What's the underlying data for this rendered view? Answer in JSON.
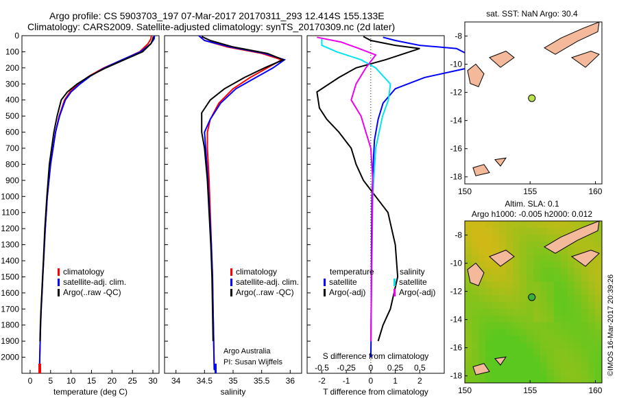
{
  "header": {
    "line1": "Argo profile: CS 5903703_197 07-Mar-2017 20170311_293 12.414S 155.133E",
    "line2": "Climatology: CARS2009. Satellite-adjusted climatology: synTS_20170309.nc (2d later)"
  },
  "colors": {
    "climatology": "#ff0000",
    "satellite": "#0000ff",
    "argo": "#000000",
    "cyan": "#00e5ee",
    "magenta": "#ee00ee",
    "land": "#f4b89a"
  },
  "credits": {
    "argo_australia": "Argo Australia",
    "pi": "PI: Susan Wijffels",
    "imos": "©IMOS 16-Mar-2017 20:39:26"
  },
  "chart_data": [
    {
      "type": "line",
      "name": "temperature-panel",
      "xlabel": "temperature (deg C)",
      "ylabel": "",
      "xlim": [
        -2,
        31.5
      ],
      "ylim": [
        2100,
        0
      ],
      "xticks": [
        0,
        5,
        10,
        15,
        20,
        25,
        30
      ],
      "yticks": [
        0,
        100,
        200,
        300,
        400,
        500,
        600,
        700,
        800,
        900,
        1000,
        1100,
        1200,
        1300,
        1400,
        1500,
        1600,
        1700,
        1800,
        1900,
        2000
      ],
      "legend": [
        "climatology",
        "satellite-adj. clim.",
        "Argo(..raw -QC)"
      ],
      "legend_position": "bottom-center",
      "series": [
        {
          "name": "climatology",
          "color": "#ff0000",
          "x": [
            29.6,
            29.5,
            28.8,
            26.8,
            22.5,
            18.0,
            14.5,
            11.8,
            9.7,
            8.4,
            7.1,
            6.2,
            5.0,
            4.2,
            3.7,
            3.3,
            3.1,
            2.9,
            2.7,
            2.55,
            2.45,
            2.35,
            2.3
          ],
          "y": [
            0,
            20,
            50,
            100,
            150,
            200,
            250,
            300,
            350,
            400,
            500,
            600,
            800,
            1000,
            1200,
            1400,
            1500,
            1600,
            1700,
            1800,
            1900,
            2000,
            2080
          ]
        },
        {
          "name": "satellite-adj. clim.",
          "color": "#0000ff",
          "x": [
            30.4,
            30.3,
            29.5,
            27.0,
            22.5,
            18.2,
            14.8,
            12.2,
            10.0,
            8.6,
            7.2,
            6.2,
            5.0,
            4.2,
            3.7,
            3.3,
            3.1,
            2.9,
            2.7,
            2.55,
            2.45,
            2.35,
            2.3
          ],
          "y": [
            0,
            20,
            50,
            100,
            150,
            200,
            250,
            300,
            350,
            400,
            500,
            600,
            800,
            1000,
            1200,
            1400,
            1500,
            1600,
            1700,
            1800,
            1900,
            2000,
            2080
          ]
        },
        {
          "name": "Argo(..raw -QC)",
          "color": "#000000",
          "x": [
            30.1,
            30.0,
            29.5,
            27.5,
            23.0,
            18.5,
            14.6,
            11.5,
            9.1,
            7.6,
            6.6,
            5.8,
            4.7,
            4.1,
            3.6,
            3.25,
            3.05,
            2.85,
            2.65,
            2.5,
            2.4
          ],
          "y": [
            5,
            20,
            50,
            100,
            150,
            200,
            250,
            300,
            350,
            400,
            500,
            600,
            800,
            1000,
            1200,
            1400,
            1500,
            1600,
            1700,
            1800,
            1900
          ]
        }
      ]
    },
    {
      "type": "line",
      "name": "salinity-panel",
      "xlabel": "salinity",
      "xlim": [
        33.8,
        36.2
      ],
      "ylim": [
        2100,
        0
      ],
      "xticks": [
        34,
        34.5,
        35,
        35.5,
        36
      ],
      "legend": [
        "climatology",
        "satellite-adj. clim.",
        "Argo(..raw -QC)"
      ],
      "legend_position": "bottom-right",
      "series": [
        {
          "name": "climatology",
          "color": "#ff0000",
          "x": [
            34.4,
            34.5,
            34.9,
            35.5,
            35.85,
            35.6,
            35.3,
            35.0,
            34.75,
            34.6,
            34.55,
            34.55,
            34.58,
            34.6,
            34.62,
            34.64,
            34.65,
            34.66,
            34.67
          ],
          "y": [
            0,
            30,
            70,
            110,
            150,
            200,
            260,
            330,
            420,
            520,
            600,
            700,
            900,
            1100,
            1300,
            1500,
            1700,
            1900,
            2080
          ]
        },
        {
          "name": "satellite-adj. clim.",
          "color": "#0000ff",
          "x": [
            34.4,
            34.5,
            34.95,
            35.55,
            35.9,
            35.7,
            35.4,
            35.05,
            34.78,
            34.6,
            34.5,
            34.52,
            34.56,
            34.59,
            34.62,
            34.64,
            34.65,
            34.66,
            34.67
          ],
          "y": [
            0,
            30,
            70,
            110,
            150,
            200,
            260,
            330,
            420,
            520,
            600,
            700,
            900,
            1100,
            1300,
            1500,
            1700,
            1900,
            2080
          ]
        },
        {
          "name": "Argo(..raw -QC)",
          "color": "#000000",
          "x": [
            34.45,
            34.6,
            35.0,
            35.6,
            35.88,
            35.55,
            35.2,
            34.85,
            34.6,
            34.45,
            34.45,
            34.5,
            34.55,
            34.58,
            34.61,
            34.63,
            34.64,
            34.65
          ],
          "y": [
            5,
            30,
            70,
            110,
            150,
            200,
            260,
            330,
            400,
            480,
            600,
            700,
            900,
            1100,
            1300,
            1500,
            1700,
            1900
          ]
        }
      ]
    },
    {
      "type": "line",
      "name": "difference-panel",
      "xlabel": "T difference from climatology",
      "top_label": "S difference from climatology",
      "xlim": [
        -2.6,
        3
      ],
      "ylim": [
        2100,
        0
      ],
      "xticks": [
        -2,
        -1,
        0,
        1,
        2
      ],
      "top_ticks": [
        "-0.5",
        "-0.25",
        "0",
        "0.25",
        "0.5"
      ],
      "legend_headers": [
        "temperature",
        "salinity"
      ],
      "legend": [
        "satellite",
        "Argo(-adj)",
        "satellite",
        "Argo(-adj)"
      ],
      "legend_position": "bottom-center",
      "series": [
        {
          "name": "temperature satellite",
          "color": "#0000ff",
          "x": [
            0.5,
            1.0,
            2.0,
            3.5,
            4.4,
            4.0,
            2.2,
            1.0,
            0.5,
            0.3,
            0.15,
            0.1,
            0.05,
            0.03,
            0.02,
            0.01,
            0.0
          ],
          "y": [
            10,
            30,
            60,
            80,
            150,
            200,
            260,
            330,
            420,
            520,
            650,
            800,
            1000,
            1300,
            1600,
            1900,
            2000
          ]
        },
        {
          "name": "temperature Argo(-adj)",
          "color": "#000000",
          "x": [
            -0.3,
            0.0,
            1.0,
            2.0,
            0.6,
            -0.6,
            -1.3,
            -2.2,
            -2.1,
            -1.8,
            -1.3,
            -0.8,
            -0.6,
            -0.3,
            0.2,
            0.7,
            1.0,
            1.1,
            0.8,
            0.5,
            0.3
          ],
          "y": [
            5,
            30,
            60,
            80,
            150,
            200,
            260,
            350,
            450,
            520,
            600,
            700,
            800,
            900,
            1000,
            1100,
            1300,
            1500,
            1700,
            1800,
            1900
          ]
        },
        {
          "name": "salinity satellite",
          "color": "#00e5ee",
          "x": [
            -0.5,
            -0.5,
            -0.35,
            -0.1,
            0.05,
            0.2,
            0.18,
            0.12,
            0.05,
            0.02,
            0.0
          ],
          "y": [
            20,
            60,
            100,
            150,
            200,
            300,
            400,
            500,
            700,
            1000,
            1900
          ]
        },
        {
          "name": "salinity Argo(-adj)",
          "color": "#ee00ee",
          "x": [
            -0.55,
            -0.3,
            -0.12,
            0.05,
            -0.05,
            -0.15,
            -0.2,
            -0.1,
            -0.05,
            0.0,
            0.02,
            0.0
          ],
          "y": [
            10,
            40,
            80,
            120,
            200,
            300,
            400,
            500,
            600,
            700,
            900,
            1900
          ]
        }
      ]
    },
    {
      "type": "scatter",
      "name": "sst-map",
      "title": "sat. SST: NaN Argo: 30.4",
      "xlim": [
        150,
        160.5
      ],
      "ylim": [
        -18.5,
        -7
      ],
      "xticks": [
        150,
        155,
        160
      ],
      "yticks": [
        -8,
        -10,
        -12,
        -14,
        -16,
        -18
      ],
      "points": [
        {
          "x": 155.133,
          "y": -12.414,
          "color": "#b8e04a"
        }
      ]
    },
    {
      "type": "heatmap",
      "name": "sla-map",
      "title": "Altim. SLA: 0.1",
      "subtitle": "Argo h1000: -0.005 h2000: 0.012",
      "xlim": [
        150,
        160.5
      ],
      "ylim": [
        -18.5,
        -7
      ],
      "xticks": [
        150,
        155,
        160
      ],
      "yticks": [
        -8,
        -10,
        -12,
        -14,
        -16,
        -18
      ],
      "points": [
        {
          "x": 155.133,
          "y": -12.414,
          "color": "#3cae3c"
        }
      ]
    }
  ]
}
